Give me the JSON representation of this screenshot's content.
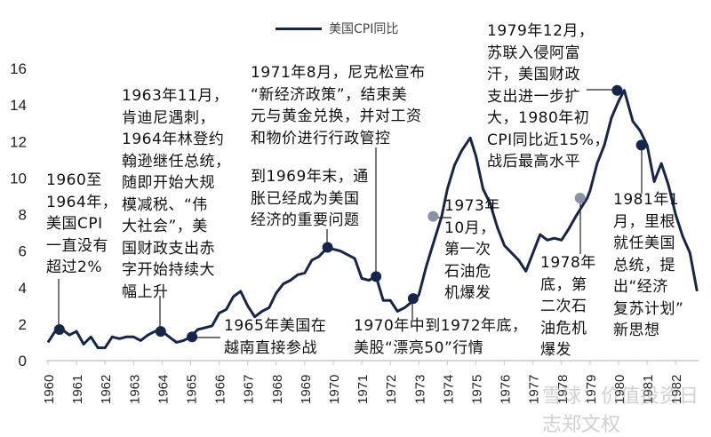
{
  "chart_data": {
    "type": "line",
    "title": "",
    "xlabel": "",
    "ylabel": "",
    "xlim": [
      1960,
      1982.8
    ],
    "ylim": [
      0,
      16
    ],
    "yticks": [
      0,
      2,
      4,
      6,
      8,
      10,
      12,
      14,
      16
    ],
    "xticks": [
      "1960",
      "1961",
      "1962",
      "1963",
      "1964",
      "1965",
      "1966",
      "1967",
      "1968",
      "1969",
      "1970",
      "1971",
      "1972",
      "1973",
      "1974",
      "1975",
      "1976",
      "1977",
      "1978",
      "1979",
      "1980",
      "1981",
      "1982"
    ],
    "grid": false,
    "legend": {
      "position": "top",
      "entries": [
        "美国CPI同比"
      ]
    },
    "color": "#15264a",
    "series": [
      {
        "name": "美国CPI同比",
        "points": [
          [
            1960.0,
            1.0
          ],
          [
            1960.25,
            1.6
          ],
          [
            1960.5,
            1.7
          ],
          [
            1960.75,
            1.4
          ],
          [
            1961.0,
            1.6
          ],
          [
            1961.25,
            0.9
          ],
          [
            1961.5,
            1.3
          ],
          [
            1961.75,
            0.7
          ],
          [
            1962.0,
            0.7
          ],
          [
            1962.25,
            1.3
          ],
          [
            1962.5,
            1.2
          ],
          [
            1962.75,
            1.3
          ],
          [
            1963.0,
            1.3
          ],
          [
            1963.25,
            1.1
          ],
          [
            1963.5,
            1.4
          ],
          [
            1963.75,
            1.6
          ],
          [
            1964.0,
            1.6
          ],
          [
            1964.25,
            1.3
          ],
          [
            1964.5,
            1.0
          ],
          [
            1964.75,
            1.1
          ],
          [
            1965.0,
            1.3
          ],
          [
            1965.25,
            1.7
          ],
          [
            1965.5,
            1.8
          ],
          [
            1965.75,
            1.9
          ],
          [
            1966.0,
            2.6
          ],
          [
            1966.25,
            2.8
          ],
          [
            1966.5,
            3.5
          ],
          [
            1966.75,
            3.8
          ],
          [
            1967.0,
            3.0
          ],
          [
            1967.25,
            2.4
          ],
          [
            1967.5,
            2.7
          ],
          [
            1967.75,
            2.9
          ],
          [
            1968.0,
            3.7
          ],
          [
            1968.25,
            4.2
          ],
          [
            1968.5,
            4.4
          ],
          [
            1968.75,
            4.7
          ],
          [
            1969.0,
            4.8
          ],
          [
            1969.25,
            5.5
          ],
          [
            1969.5,
            5.7
          ],
          [
            1969.8,
            6.2
          ],
          [
            1970.0,
            6.1
          ],
          [
            1970.25,
            6.0
          ],
          [
            1970.5,
            5.8
          ],
          [
            1970.75,
            5.6
          ],
          [
            1971.0,
            4.5
          ],
          [
            1971.25,
            4.4
          ],
          [
            1971.5,
            4.6
          ],
          [
            1971.75,
            3.3
          ],
          [
            1972.0,
            3.3
          ],
          [
            1972.25,
            2.7
          ],
          [
            1972.5,
            2.9
          ],
          [
            1972.9,
            3.4
          ],
          [
            1973.0,
            3.6
          ],
          [
            1973.25,
            5.1
          ],
          [
            1973.5,
            6.4
          ],
          [
            1973.8,
            7.9
          ],
          [
            1974.0,
            9.4
          ],
          [
            1974.25,
            10.7
          ],
          [
            1974.5,
            11.5
          ],
          [
            1974.8,
            12.2
          ],
          [
            1975.0,
            11.2
          ],
          [
            1975.25,
            9.4
          ],
          [
            1975.5,
            8.6
          ],
          [
            1975.75,
            7.3
          ],
          [
            1976.0,
            6.3
          ],
          [
            1976.25,
            5.9
          ],
          [
            1976.5,
            5.5
          ],
          [
            1976.75,
            4.9
          ],
          [
            1977.0,
            5.9
          ],
          [
            1977.25,
            6.9
          ],
          [
            1977.5,
            6.6
          ],
          [
            1977.75,
            6.7
          ],
          [
            1978.0,
            6.6
          ],
          [
            1978.25,
            7.2
          ],
          [
            1978.5,
            7.9
          ],
          [
            1978.9,
            8.9
          ],
          [
            1979.0,
            9.3
          ],
          [
            1979.25,
            10.8
          ],
          [
            1979.5,
            11.8
          ],
          [
            1979.75,
            13.3
          ],
          [
            1980.0,
            14.2
          ],
          [
            1980.2,
            14.8
          ],
          [
            1980.5,
            13.1
          ],
          [
            1980.75,
            12.6
          ],
          [
            1981.0,
            11.8
          ],
          [
            1981.25,
            9.8
          ],
          [
            1981.5,
            10.8
          ],
          [
            1981.75,
            9.6
          ],
          [
            1982.0,
            8.0
          ],
          [
            1982.25,
            6.8
          ],
          [
            1982.5,
            5.9
          ],
          [
            1982.75,
            3.8
          ]
        ]
      }
    ],
    "markers": [
      {
        "x": 1960.4,
        "y": 1.7,
        "color": "#15264a"
      },
      {
        "x": 1963.95,
        "y": 1.6,
        "color": "#15264a"
      },
      {
        "x": 1965.05,
        "y": 1.3,
        "color": "#15264a"
      },
      {
        "x": 1969.8,
        "y": 6.2,
        "color": "#15264a"
      },
      {
        "x": 1971.5,
        "y": 4.6,
        "color": "#15264a"
      },
      {
        "x": 1972.8,
        "y": 3.4,
        "color": "#15264a"
      },
      {
        "x": 1973.5,
        "y": 7.9,
        "color": "#8a93a6"
      },
      {
        "x": 1978.65,
        "y": 8.9,
        "color": "#8a93a6"
      },
      {
        "x": 1979.95,
        "y": 14.8,
        "color": "#15264a"
      },
      {
        "x": 1980.8,
        "y": 11.8,
        "color": "#15264a"
      }
    ],
    "annotations": [
      {
        "lines": [
          "1960至",
          "1964年，",
          "美国CPI",
          "一直没有",
          "超过2%"
        ]
      },
      {
        "lines": [
          "1963年11月，",
          "肯迪尼遇刺，",
          "1964年林登约",
          "翰逊继任总统，",
          "随即开始大规",
          "模减税、“伟",
          "大社会”，美",
          "国财政支出赤",
          "字开始持续大",
          "幅上升"
        ]
      },
      {
        "lines": [
          "1965年美国在",
          "越南直接参战"
        ]
      },
      {
        "lines": [
          "1971年8月，尼克松宣布",
          "“新经济政策”，结束美",
          "元与黄金兑换，并对工资",
          "和物价进行行政管控"
        ]
      },
      {
        "lines": [
          "到1969年末，通",
          "胀已经成为美国",
          "经济的重要问题"
        ]
      },
      {
        "lines": [
          "1970年中到1972年底，",
          "美股“漂亮50”行情"
        ]
      },
      {
        "lines": [
          "1973年",
          "10月，",
          "第一次",
          "石油危",
          "机爆发"
        ]
      },
      {
        "lines": [
          "1978年",
          "底，第",
          "二次石",
          "油危机",
          "爆发"
        ]
      },
      {
        "lines": [
          "1979年12月，",
          "苏联入侵阿富",
          "汗，美国财政",
          "支出进一步扩",
          "大，1980年初",
          "CPI同比近15%，",
          "战后最高水平"
        ]
      },
      {
        "lines": [
          "1981年1",
          "月，里根",
          "就任美国",
          "总统，提",
          "出“经济",
          "复苏计划”",
          "新思想"
        ]
      }
    ]
  },
  "watermark": "雪球：价值投资日志郑文权"
}
